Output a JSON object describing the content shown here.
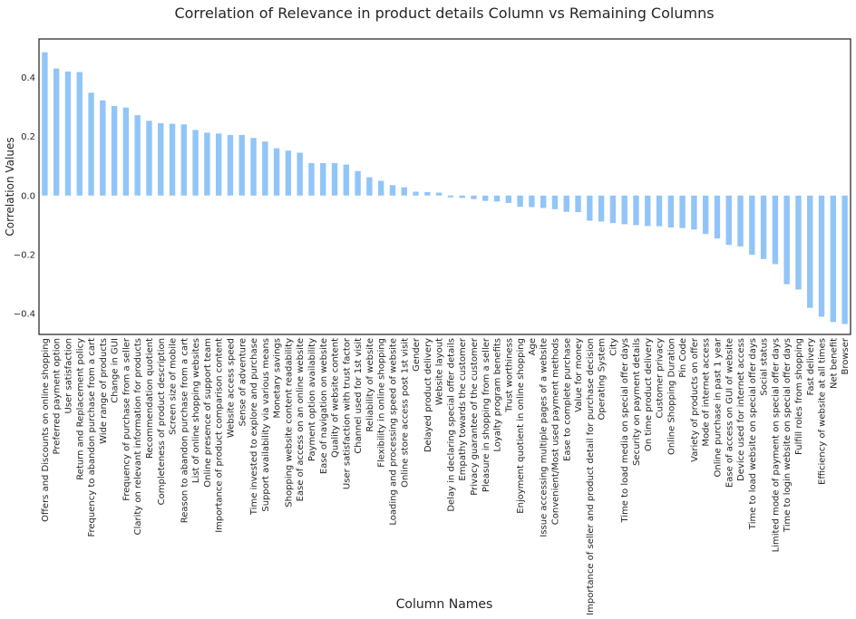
{
  "chart_data": {
    "type": "bar",
    "title": "Correlation of Relevance in product details Column vs Remaining Columns",
    "xlabel": "Column Names",
    "ylabel": "Correlation Values",
    "ylim": [
      -0.47,
      0.53
    ],
    "yticks": [
      -0.4,
      -0.2,
      0.0,
      0.2,
      0.4
    ],
    "ytick_labels": [
      "−0.4",
      "−0.2",
      "0.0",
      "0.2",
      "0.4"
    ],
    "bar_color": "#92c5f7",
    "grid": false,
    "categories": [
      "Offers and Discounts on online shopping",
      "Preferred payment option",
      "User satisfaction",
      "Return and Replacement policy",
      "Frequency to abandon purchase from a cart",
      "Wide range of products",
      "Change in GUI",
      "Frequency of purchase from a seller",
      "Clarity on relevant information for products",
      "Recommendation quotient",
      "Completeness of product description",
      "Screen size of mobile",
      "Reason to abandon purchase from a cart",
      "List of online shopping websites",
      "Online presence of support team",
      "Importance of product comparison content",
      "Website access speed",
      "Sense of adventure",
      "Time invested to explore and purchase",
      "Support availability via various means",
      "Monetary savings",
      "Shopping website content readability",
      "Ease of access on an online website",
      "Payment option availability",
      "Ease of navigation on website",
      "Quality of website content",
      "User satisfaction with trust factor",
      "Channel used for 1st visit",
      "Reliability of website",
      "Flexibility in online shopping",
      "Loading and processing speed of website",
      "Online store access post 1st visit",
      "Gender",
      "Delayed product delivery",
      "Website layout",
      "Delay in declaring special offer details",
      "Empathy towards the customer",
      "Privacy guarantee of the customer",
      "Pleasure in shopping from a seller",
      "Loyalty program benefits",
      "Trust worthiness",
      "Enjoyment quotient in online shopping",
      "Age",
      "Issue accessing multiple pages of a website",
      "Convenient/Most used payment methods",
      "Ease to complete purchase",
      "Value for money",
      "Importance of seller and product detail for purchase decision",
      "Operating System",
      "City",
      "Time to load media on special offer days",
      "Security on payment details",
      "On time product delivery",
      "Customer privacy",
      "Online Shopping Duration",
      "Pin Code",
      "Variety of products on offer",
      "Mode of internet access",
      "Online purchase in past 1 year",
      "Ease of access on GUI of website",
      "Device used for internet access",
      "Time to load website on special offer days",
      "Social status",
      "Limited mode of payment on special offer days",
      "Time to login website on special offer days",
      "Fulfill roles from shopping",
      "Fast delivery",
      "Efficiency of website at all times",
      "Net benefit",
      "Browser"
    ],
    "values": [
      0.485,
      0.43,
      0.42,
      0.418,
      0.348,
      0.322,
      0.303,
      0.298,
      0.272,
      0.253,
      0.245,
      0.243,
      0.241,
      0.222,
      0.213,
      0.21,
      0.205,
      0.205,
      0.195,
      0.183,
      0.16,
      0.152,
      0.145,
      0.11,
      0.11,
      0.11,
      0.105,
      0.083,
      0.062,
      0.05,
      0.035,
      0.028,
      0.013,
      0.012,
      0.01,
      -0.006,
      -0.008,
      -0.012,
      -0.018,
      -0.02,
      -0.025,
      -0.038,
      -0.039,
      -0.042,
      -0.046,
      -0.055,
      -0.056,
      -0.085,
      -0.088,
      -0.093,
      -0.097,
      -0.1,
      -0.103,
      -0.104,
      -0.108,
      -0.11,
      -0.115,
      -0.13,
      -0.145,
      -0.167,
      -0.172,
      -0.2,
      -0.215,
      -0.232,
      -0.3,
      -0.318,
      -0.38,
      -0.41,
      -0.428,
      -0.435
    ]
  }
}
